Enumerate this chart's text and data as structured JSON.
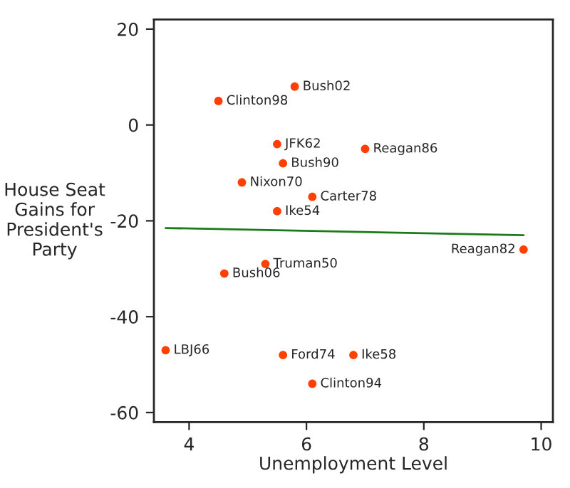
{
  "chart_data": {
    "type": "scatter",
    "xlabel": "Unemployment Level",
    "ylabel": "House Seat\nGains for\nPresident's\nParty",
    "xlim": [
      3.4,
      10.2
    ],
    "ylim": [
      -62,
      22
    ],
    "xticks": [
      4,
      6,
      8,
      10
    ],
    "yticks": [
      -60,
      -40,
      -20,
      0,
      20
    ],
    "grid": false,
    "marker": "circle",
    "series": [
      {
        "color": "#ff4000",
        "x": [
          5.8,
          4.5,
          5.5,
          7.0,
          5.6,
          4.9,
          6.1,
          5.5,
          9.7,
          5.3,
          4.6,
          3.6,
          5.6,
          6.8,
          6.1
        ],
        "values": [
          8,
          5,
          -4,
          -5,
          -8,
          -12,
          -15,
          -18,
          -26,
          -29,
          -31,
          -47,
          -48,
          -48,
          -54
        ]
      },
      {
        "type": "line",
        "marker": "none",
        "color": "#1a7a1a",
        "x": [
          3.6,
          9.7
        ],
        "values": [
          -21.5,
          -23
        ]
      }
    ],
    "annotations": [
      {
        "text": "Bush02",
        "x": 5.8,
        "y": 8
      },
      {
        "text": "Clinton98",
        "x": 4.5,
        "y": 5
      },
      {
        "text": "JFK62",
        "x": 5.5,
        "y": -4
      },
      {
        "text": "Reagan86",
        "x": 7.0,
        "y": -5
      },
      {
        "text": "Bush90",
        "x": 5.6,
        "y": -8
      },
      {
        "text": "Nixon70",
        "x": 4.9,
        "y": -12
      },
      {
        "text": "Carter78",
        "x": 6.1,
        "y": -15
      },
      {
        "text": "Ike54",
        "x": 5.5,
        "y": -18
      },
      {
        "text": "Reagan82",
        "x": 9.7,
        "y": -26
      },
      {
        "text": "Truman50",
        "x": 5.3,
        "y": -29
      },
      {
        "text": "Bush06",
        "x": 4.6,
        "y": -31
      },
      {
        "text": "LBJ66",
        "x": 3.6,
        "y": -47
      },
      {
        "text": "Ford74",
        "x": 5.6,
        "y": -48
      },
      {
        "text": "Ike58",
        "x": 6.8,
        "y": -48
      },
      {
        "text": "Clinton94",
        "x": 6.1,
        "y": -54
      }
    ]
  }
}
